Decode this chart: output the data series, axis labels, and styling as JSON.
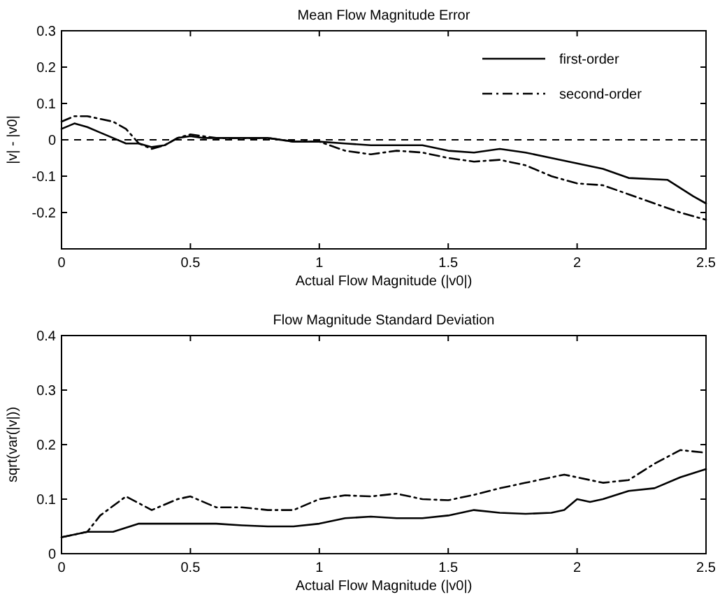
{
  "chart_data": [
    {
      "type": "line",
      "title": "Mean Flow Magnitude Error",
      "xlabel": "Actual Flow Magnitude (|v0|)",
      "ylabel": "|v| - |v0|",
      "xlim": [
        0,
        2.5
      ],
      "xticks": [
        0,
        0.5,
        1,
        1.5,
        2,
        2.5
      ],
      "ylim": [
        -0.3,
        0.3
      ],
      "yticks": [
        -0.2,
        -0.1,
        0,
        0.1,
        0.2,
        0.3
      ],
      "legend": "top right",
      "grid": false,
      "ref_lines": [
        {
          "axis": "y",
          "value": 0,
          "color": "#000000",
          "line_style": "dashed"
        }
      ],
      "series": [
        {
          "name": "first-order",
          "color": "#000000",
          "line_style": "solid",
          "x": [
            0,
            0.05,
            0.1,
            0.15,
            0.2,
            0.25,
            0.3,
            0.35,
            0.4,
            0.45,
            0.5,
            0.55,
            0.6,
            0.7,
            0.8,
            0.9,
            1.0,
            1.1,
            1.2,
            1.3,
            1.4,
            1.5,
            1.6,
            1.7,
            1.8,
            1.9,
            2.0,
            2.1,
            2.2,
            2.35,
            2.45,
            2.5
          ],
          "values": [
            0.03,
            0.045,
            0.035,
            0.02,
            0.005,
            -0.01,
            -0.01,
            -0.02,
            -0.015,
            0.005,
            0.01,
            0.005,
            0.005,
            0.005,
            0.005,
            -0.005,
            -0.005,
            -0.01,
            -0.015,
            -0.015,
            -0.015,
            -0.03,
            -0.035,
            -0.025,
            -0.035,
            -0.05,
            -0.065,
            -0.08,
            -0.105,
            -0.11,
            -0.155,
            -0.175
          ]
        },
        {
          "name": "second-order",
          "color": "#000000",
          "line_style": "dashdot",
          "x": [
            0,
            0.05,
            0.1,
            0.2,
            0.25,
            0.3,
            0.35,
            0.4,
            0.45,
            0.5,
            0.6,
            0.8,
            0.9,
            1.0,
            1.1,
            1.2,
            1.3,
            1.4,
            1.5,
            1.6,
            1.7,
            1.8,
            1.9,
            2.0,
            2.1,
            2.2,
            2.3,
            2.4,
            2.5
          ],
          "values": [
            0.05,
            0.065,
            0.065,
            0.05,
            0.03,
            -0.01,
            -0.025,
            -0.015,
            0.005,
            0.015,
            0.005,
            0.005,
            -0.005,
            -0.005,
            -0.03,
            -0.04,
            -0.03,
            -0.035,
            -0.05,
            -0.06,
            -0.055,
            -0.07,
            -0.1,
            -0.12,
            -0.125,
            -0.15,
            -0.175,
            -0.2,
            -0.22
          ]
        }
      ]
    },
    {
      "type": "line",
      "title": "Flow Magnitude Standard Deviation",
      "xlabel": "Actual Flow Magnitude (|v0|)",
      "ylabel": "sqrt(var(|v|))",
      "xlim": [
        0,
        2.5
      ],
      "xticks": [
        0,
        0.5,
        1,
        1.5,
        2,
        2.5
      ],
      "ylim": [
        0,
        0.4
      ],
      "yticks": [
        0,
        0.1,
        0.2,
        0.3,
        0.4
      ],
      "grid": false,
      "series": [
        {
          "color": "#000000",
          "line_style": "solid",
          "x": [
            0,
            0.1,
            0.2,
            0.3,
            0.4,
            0.5,
            0.6,
            0.7,
            0.8,
            0.9,
            1.0,
            1.1,
            1.2,
            1.3,
            1.4,
            1.5,
            1.6,
            1.7,
            1.8,
            1.9,
            1.95,
            2.0,
            2.05,
            2.1,
            2.2,
            2.3,
            2.4,
            2.5
          ],
          "values": [
            0.03,
            0.04,
            0.04,
            0.055,
            0.055,
            0.055,
            0.055,
            0.052,
            0.05,
            0.05,
            0.055,
            0.065,
            0.068,
            0.065,
            0.065,
            0.07,
            0.08,
            0.075,
            0.073,
            0.075,
            0.08,
            0.1,
            0.095,
            0.1,
            0.115,
            0.12,
            0.14,
            0.155
          ]
        },
        {
          "color": "#000000",
          "line_style": "dashdot",
          "x": [
            0,
            0.1,
            0.15,
            0.25,
            0.35,
            0.45,
            0.5,
            0.6,
            0.7,
            0.8,
            0.9,
            1.0,
            1.1,
            1.2,
            1.3,
            1.4,
            1.5,
            1.6,
            1.7,
            1.8,
            1.9,
            1.95,
            2.0,
            2.1,
            2.2,
            2.3,
            2.4,
            2.5
          ],
          "values": [
            0.03,
            0.04,
            0.07,
            0.105,
            0.08,
            0.1,
            0.105,
            0.085,
            0.085,
            0.08,
            0.08,
            0.1,
            0.107,
            0.105,
            0.11,
            0.1,
            0.098,
            0.108,
            0.12,
            0.13,
            0.14,
            0.145,
            0.14,
            0.13,
            0.135,
            0.165,
            0.19,
            0.185
          ]
        }
      ]
    }
  ]
}
